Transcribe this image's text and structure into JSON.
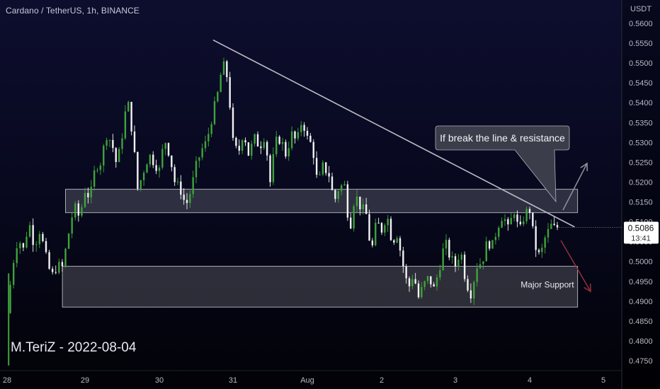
{
  "header": {
    "title": "Cardano / TetherUS, 1h, BINANCE"
  },
  "watermark": "M.TeriZ - 2022-08-04",
  "colors": {
    "up": "#3fa33a",
    "down": "#f2f2f2",
    "trendline": "#b9bbc4",
    "zone_fill": "#ffffff",
    "callout_fill": "#3b3e4a",
    "arrow_up": "#8a8d96",
    "arrow_down": "#8b2f38",
    "price_badge": "#ffffff"
  },
  "chart_data": {
    "type": "candlestick",
    "symbol": "Cardano / TetherUS",
    "interval": "1h",
    "exchange": "BINANCE",
    "y_unit": "USDT",
    "ylim": [
      0.4715,
      0.5645
    ],
    "y_ticks": [
      "0.5600",
      "0.5550",
      "0.5500",
      "0.5450",
      "0.5400",
      "0.5350",
      "0.5300",
      "0.5250",
      "0.5200",
      "0.5150",
      "0.5100",
      "0.5050",
      "0.5000",
      "0.4950",
      "0.4900",
      "0.4850",
      "0.4800",
      "0.4750"
    ],
    "x_ticks": [
      {
        "label": "28",
        "day": 0
      },
      {
        "label": "29",
        "day": 1
      },
      {
        "label": "30",
        "day": 2
      },
      {
        "label": "31",
        "day": 3
      },
      {
        "label": "Aug",
        "day": 4
      },
      {
        "label": "2",
        "day": 5
      },
      {
        "label": "3",
        "day": 6
      },
      {
        "label": "4",
        "day": 7
      },
      {
        "label": "5",
        "day": 8
      }
    ],
    "day_pixels": [
      10,
      120,
      225,
      329,
      434,
      539,
      643,
      748,
      852
    ],
    "last_price": "0.5086",
    "countdown": "13:41",
    "price_path": [
      [
        0.0,
        0.487
      ],
      [
        0.07,
        0.499
      ],
      [
        0.14,
        0.506
      ],
      [
        0.21,
        0.503
      ],
      [
        0.28,
        0.51
      ],
      [
        0.35,
        0.504
      ],
      [
        0.42,
        0.508
      ],
      [
        0.5,
        0.501
      ],
      [
        0.57,
        0.496
      ],
      [
        0.64,
        0.499
      ],
      [
        0.71,
        0.4985
      ],
      [
        0.78,
        0.506
      ],
      [
        0.86,
        0.514
      ],
      [
        0.93,
        0.511
      ],
      [
        1.0,
        0.518
      ],
      [
        1.07,
        0.516
      ],
      [
        1.14,
        0.524
      ],
      [
        1.21,
        0.525
      ],
      [
        1.29,
        0.532
      ],
      [
        1.36,
        0.53
      ],
      [
        1.43,
        0.524
      ],
      [
        1.5,
        0.532
      ],
      [
        1.57,
        0.541
      ],
      [
        1.64,
        0.532
      ],
      [
        1.71,
        0.518
      ],
      [
        1.79,
        0.523
      ],
      [
        1.86,
        0.527
      ],
      [
        1.93,
        0.525
      ],
      [
        2.0,
        0.523
      ],
      [
        2.07,
        0.531
      ],
      [
        2.14,
        0.527
      ],
      [
        2.21,
        0.52
      ],
      [
        2.29,
        0.518
      ],
      [
        2.36,
        0.514
      ],
      [
        2.43,
        0.518
      ],
      [
        2.5,
        0.524
      ],
      [
        2.57,
        0.528
      ],
      [
        2.64,
        0.53
      ],
      [
        2.71,
        0.536
      ],
      [
        2.79,
        0.542
      ],
      [
        2.86,
        0.55
      ],
      [
        2.93,
        0.546
      ],
      [
        3.0,
        0.53
      ],
      [
        3.07,
        0.527
      ],
      [
        3.14,
        0.533
      ],
      [
        3.21,
        0.527
      ],
      [
        3.29,
        0.531
      ],
      [
        3.36,
        0.529
      ],
      [
        3.43,
        0.532
      ],
      [
        3.5,
        0.52
      ],
      [
        3.57,
        0.53
      ],
      [
        3.64,
        0.531
      ],
      [
        3.71,
        0.527
      ],
      [
        3.79,
        0.532
      ],
      [
        3.86,
        0.53
      ],
      [
        3.93,
        0.536
      ],
      [
        4.0,
        0.531
      ],
      [
        4.07,
        0.529
      ],
      [
        4.14,
        0.519
      ],
      [
        4.21,
        0.524
      ],
      [
        4.29,
        0.522
      ],
      [
        4.36,
        0.515
      ],
      [
        4.43,
        0.519
      ],
      [
        4.5,
        0.519
      ],
      [
        4.57,
        0.508
      ],
      [
        4.64,
        0.517
      ],
      [
        4.71,
        0.514
      ],
      [
        4.79,
        0.512
      ],
      [
        4.86,
        0.502
      ],
      [
        4.93,
        0.51
      ],
      [
        5.0,
        0.508
      ],
      [
        5.07,
        0.512
      ],
      [
        5.14,
        0.505
      ],
      [
        5.21,
        0.507
      ],
      [
        5.29,
        0.499
      ],
      [
        5.36,
        0.493
      ],
      [
        5.43,
        0.497
      ],
      [
        5.5,
        0.491
      ],
      [
        5.57,
        0.494
      ],
      [
        5.64,
        0.496
      ],
      [
        5.71,
        0.493
      ],
      [
        5.79,
        0.499
      ],
      [
        5.86,
        0.505
      ],
      [
        5.93,
        0.501
      ],
      [
        6.0,
        0.499
      ],
      [
        6.07,
        0.503
      ],
      [
        6.14,
        0.495
      ],
      [
        6.21,
        0.492
      ],
      [
        6.29,
        0.499
      ],
      [
        6.36,
        0.5
      ],
      [
        6.43,
        0.505
      ],
      [
        6.5,
        0.504
      ],
      [
        6.57,
        0.509
      ],
      [
        6.64,
        0.512
      ],
      [
        6.71,
        0.508
      ],
      [
        6.79,
        0.513
      ],
      [
        6.86,
        0.507
      ],
      [
        6.93,
        0.512
      ],
      [
        7.0,
        0.513
      ],
      [
        7.07,
        0.504
      ],
      [
        7.14,
        0.501
      ],
      [
        7.21,
        0.506
      ],
      [
        7.29,
        0.509
      ],
      [
        7.36,
        0.508
      ],
      [
        7.4,
        0.5086
      ]
    ],
    "trendline": {
      "start": {
        "day": 2.73,
        "price": 0.5558
      },
      "end": {
        "day": 7.61,
        "price": 0.5087
      }
    },
    "zones": [
      {
        "name": "resistance",
        "day_from": 0.75,
        "day_to": 7.65,
        "price_top": 0.5182,
        "price_bottom": 0.5123
      },
      {
        "name": "major-support",
        "day_from": 0.71,
        "day_to": 7.65,
        "price_top": 0.4988,
        "price_bottom": 0.4885,
        "label": "Major Support"
      }
    ],
    "annotations": [
      {
        "name": "break-callout",
        "text": "If break the line & resistance"
      }
    ]
  }
}
